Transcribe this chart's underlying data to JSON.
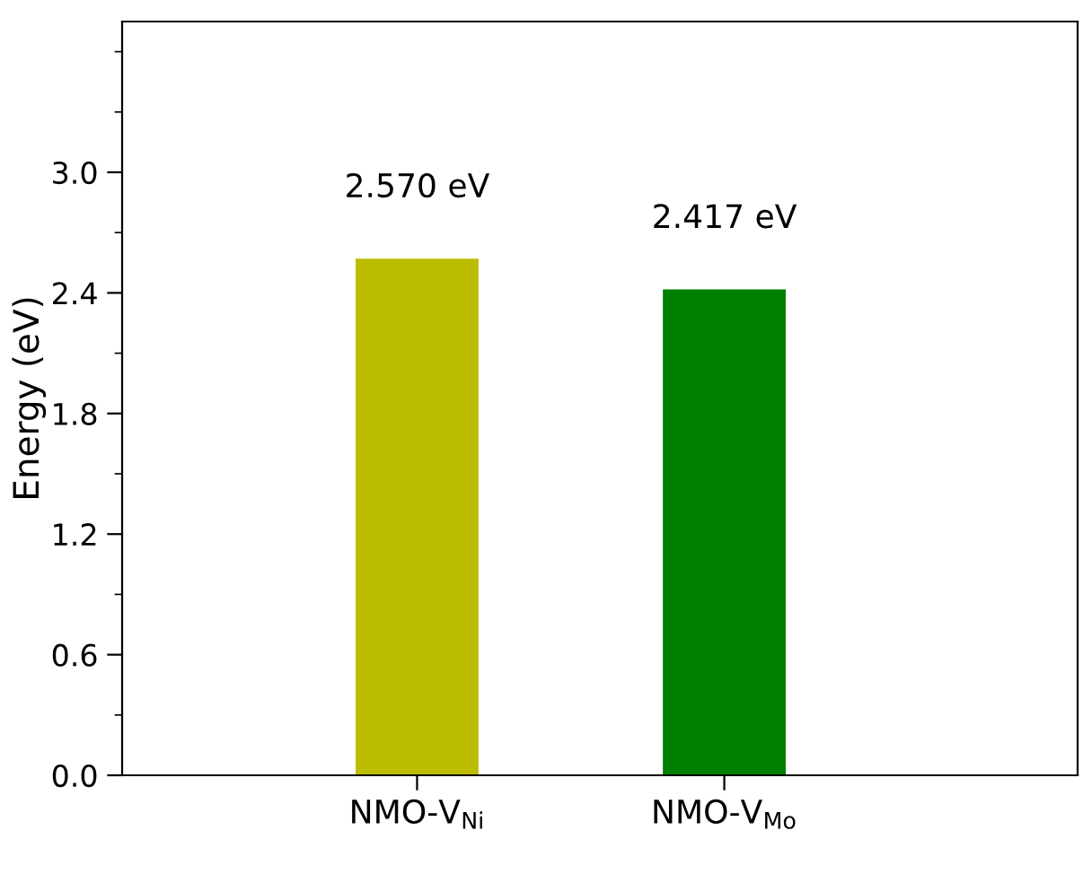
{
  "chart_data": {
    "type": "bar",
    "ylabel": "Energy (eV)",
    "categories": [
      "NMO-V$_{Ni}$",
      "NMO-V$_{Mo}$"
    ],
    "values": [
      2.57,
      2.417
    ],
    "colors": [
      "#bcbc00",
      "#008000"
    ],
    "value_labels": [
      "2.570 eV",
      "2.417 eV"
    ],
    "ylim": [
      0,
      3.75
    ],
    "yticks": [
      {
        "value": 0,
        "label": "0.0"
      },
      0.6,
      1.2,
      1.8,
      2.4,
      {
        "value": 3,
        "label": "3.0"
      }
    ],
    "grid": false,
    "legend": false
  }
}
